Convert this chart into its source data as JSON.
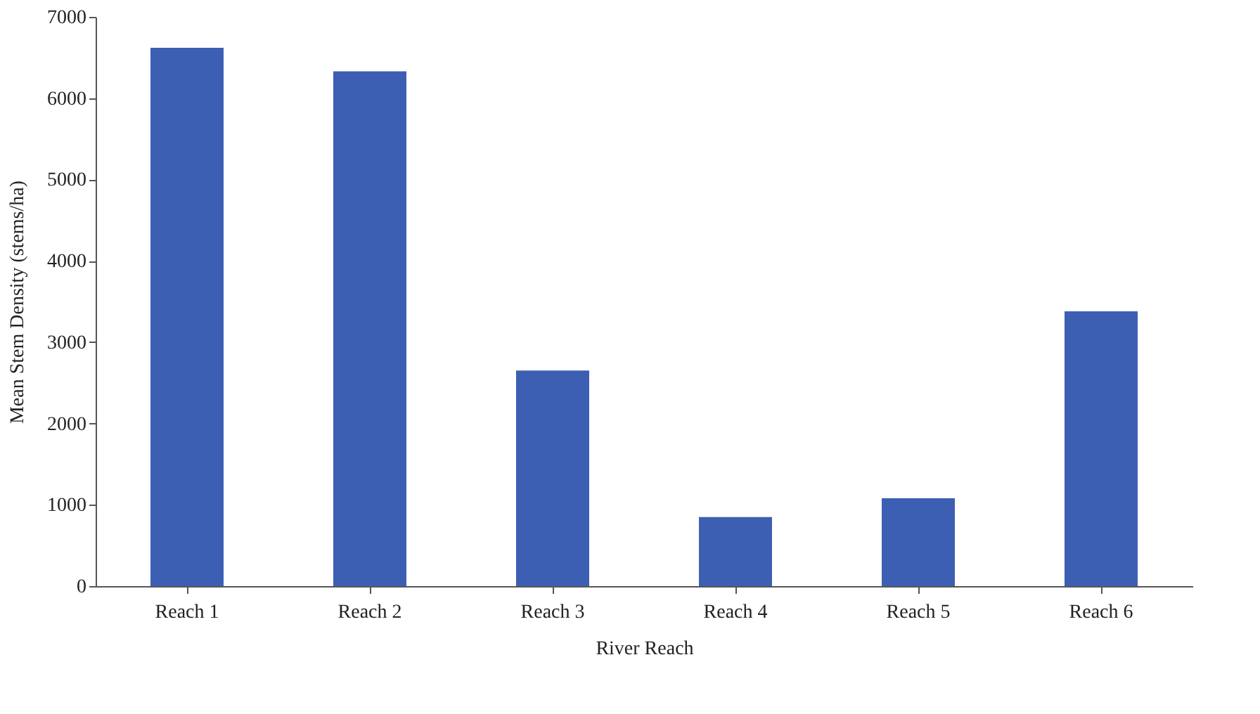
{
  "chart_data": {
    "type": "bar",
    "categories": [
      "Reach 1",
      "Reach 2",
      "Reach 3",
      "Reach 4",
      "Reach 5",
      "Reach 6"
    ],
    "values": [
      6620,
      6330,
      2650,
      850,
      1080,
      3380
    ],
    "color": "#3d5fb3",
    "xlabel": "River Reach",
    "ylabel": "Mean Stem Density (stems/ha)",
    "ylim": [
      0,
      7000
    ],
    "yticks": [
      0,
      1000,
      2000,
      3000,
      4000,
      5000,
      6000,
      7000
    ],
    "grid": false
  }
}
